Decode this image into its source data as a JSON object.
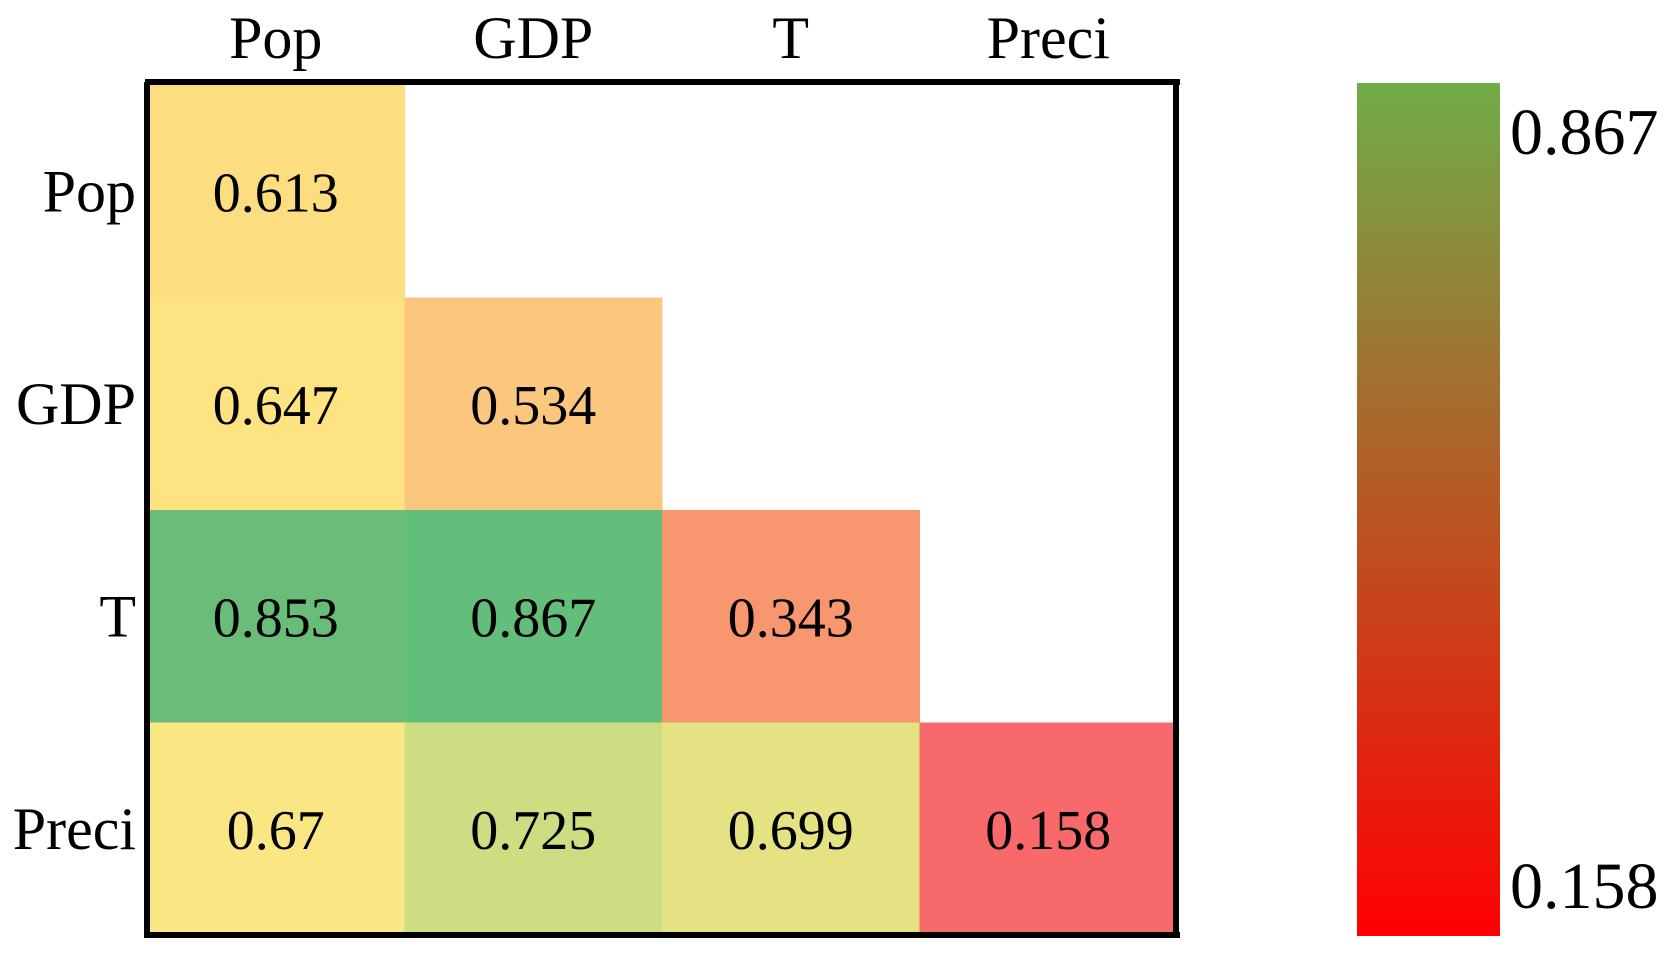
{
  "chart_data": {
    "type": "heatmap",
    "title": "",
    "x_labels": [
      "Pop",
      "GDP",
      "T",
      "Preci"
    ],
    "y_labels": [
      "Pop",
      "GDP",
      "T",
      "Preci"
    ],
    "matrix": [
      [
        0.613,
        null,
        null,
        null
      ],
      [
        0.647,
        0.534,
        null,
        null
      ],
      [
        0.853,
        0.867,
        0.343,
        null
      ],
      [
        0.67,
        0.725,
        0.699,
        0.158
      ]
    ],
    "cell_text": [
      [
        "0.613",
        "",
        "",
        ""
      ],
      [
        "0.647",
        "0.534",
        "",
        ""
      ],
      [
        "0.853",
        "0.867",
        "0.343",
        ""
      ],
      [
        "0.67",
        "0.725",
        "0.699",
        "0.158"
      ]
    ],
    "cell_colors": [
      [
        "#fcdd80",
        null,
        null,
        null
      ],
      [
        "#fde382",
        "#fbc77f",
        null,
        null
      ],
      [
        "#6abd78",
        "#63be7b",
        "#f8966f",
        null
      ],
      [
        "#fae783",
        "#cddd82",
        "#e4e283",
        "#f8696b"
      ]
    ],
    "colorbar": {
      "max_label": "0.867",
      "min_label": "0.158",
      "max": 0.867,
      "min": 0.158,
      "color_max": "#70ad47",
      "color_min": "#ff0000"
    }
  }
}
